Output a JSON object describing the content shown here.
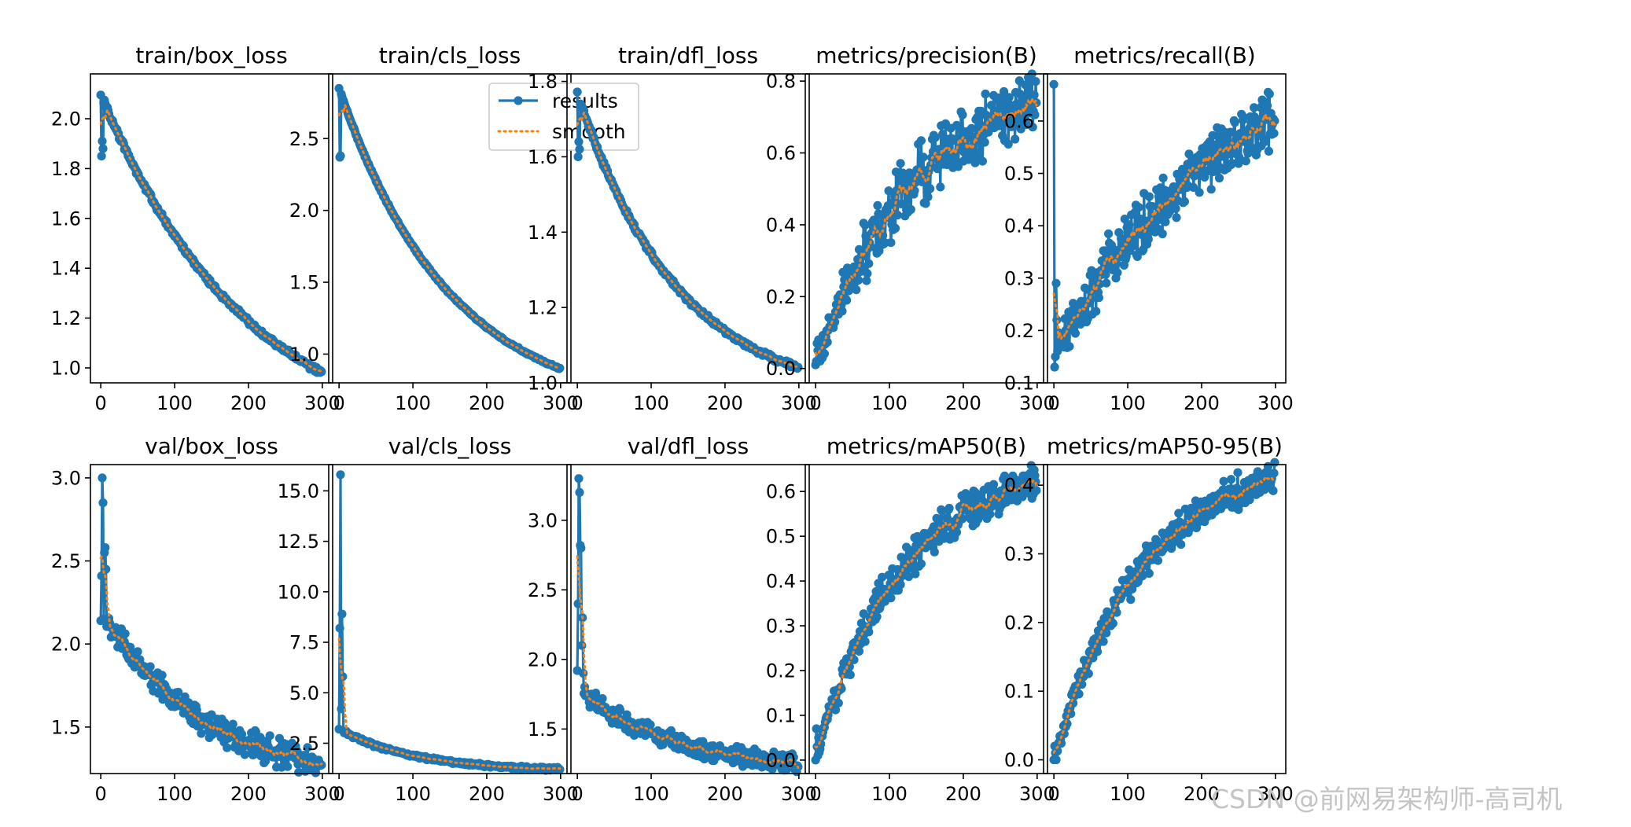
{
  "figure": {
    "legend": {
      "results_label": "results",
      "smooth_label": "smooth"
    },
    "watermark": "CSDN @前网易架构师-高司机",
    "colors": {
      "results": "#1f77b4",
      "smooth": "#ff7f0e",
      "axis": "#000000"
    }
  },
  "chart_data": [
    {
      "type": "line",
      "title": "train/box_loss",
      "xlim": [
        -14,
        314
      ],
      "ylim": [
        0.94,
        2.18
      ],
      "xticks": [
        0,
        100,
        200,
        300
      ],
      "xtick_labels": [
        "0",
        "100",
        "200",
        "300"
      ],
      "yticks": [
        1.0,
        1.2,
        1.4,
        1.6,
        1.8,
        2.0
      ],
      "ytick_labels": [
        "1.0",
        "1.2",
        "1.4",
        "1.6",
        "1.8",
        "2.0"
      ],
      "series": [
        {
          "name": "results",
          "gen": {
            "kind": "decay",
            "start": 2.1,
            "end": 0.98,
            "rate": 1.5,
            "noise": 0.008,
            "special": [
              [
                1,
                1.85
              ],
              [
                2,
                1.91
              ],
              [
                3,
                1.88
              ]
            ]
          }
        }
      ]
    },
    {
      "type": "line",
      "title": "train/cls_loss",
      "xlim": [
        -14,
        314
      ],
      "ylim": [
        0.8,
        2.95
      ],
      "xticks": [
        0,
        100,
        200,
        300
      ],
      "xtick_labels": [
        "0",
        "100",
        "200",
        "300"
      ],
      "yticks": [
        1.0,
        1.5,
        2.0,
        2.5
      ],
      "ytick_labels": [
        "1.0",
        "1.5",
        "2.0",
        "2.5"
      ],
      "legend": "top-right",
      "series": [
        {
          "name": "results",
          "gen": {
            "kind": "decay",
            "start": 2.85,
            "end": 0.9,
            "rate": 2.0,
            "noise": 0.005,
            "special": [
              [
                1,
                2.37
              ],
              [
                2,
                2.38
              ]
            ]
          }
        }
      ]
    },
    {
      "type": "line",
      "title": "train/dfl_loss",
      "xlim": [
        -14,
        314
      ],
      "ylim": [
        1.0,
        1.82
      ],
      "xticks": [
        0,
        100,
        200,
        300
      ],
      "xtick_labels": [
        "0",
        "100",
        "200",
        "300"
      ],
      "yticks": [
        1.0,
        1.2,
        1.4,
        1.6,
        1.8
      ],
      "ytick_labels": [
        "1.0",
        "1.2",
        "1.4",
        "1.6",
        "1.8"
      ],
      "series": [
        {
          "name": "results",
          "gen": {
            "kind": "decay",
            "start": 1.77,
            "end": 1.04,
            "rate": 2.2,
            "noise": 0.005,
            "special": [
              [
                1,
                1.6
              ],
              [
                2,
                1.64
              ],
              [
                3,
                1.62
              ]
            ]
          }
        }
      ]
    },
    {
      "type": "line",
      "title": "metrics/precision(B)",
      "xlim": [
        -14,
        314
      ],
      "ylim": [
        -0.04,
        0.82
      ],
      "xticks": [
        0,
        100,
        200,
        300
      ],
      "xtick_labels": [
        "0",
        "100",
        "200",
        "300"
      ],
      "yticks": [
        0.0,
        0.2,
        0.4,
        0.6,
        0.8
      ],
      "ytick_labels": [
        "0.0",
        "0.2",
        "0.4",
        "0.6",
        "0.8"
      ],
      "series": [
        {
          "name": "results",
          "gen": {
            "kind": "grow",
            "start": 0.0,
            "end": 0.73,
            "rate": 2.3,
            "noise": 0.045,
            "special": [
              [
                0,
                0.01
              ],
              [
                1,
                0.02
              ],
              [
                2,
                0.07
              ],
              [
                3,
                0.05
              ],
              [
                4,
                0.08
              ]
            ]
          }
        }
      ]
    },
    {
      "type": "line",
      "title": "metrics/recall(B)",
      "xlim": [
        -14,
        314
      ],
      "ylim": [
        0.1,
        0.69
      ],
      "xticks": [
        0,
        100,
        200,
        300
      ],
      "xtick_labels": [
        "0",
        "100",
        "200",
        "300"
      ],
      "yticks": [
        0.1,
        0.2,
        0.3,
        0.4,
        0.5,
        0.6
      ],
      "ytick_labels": [
        "0.1",
        "0.2",
        "0.3",
        "0.4",
        "0.5",
        "0.6"
      ],
      "series": [
        {
          "name": "results",
          "gen": {
            "kind": "grow",
            "start": 0.15,
            "end": 0.6,
            "rate": 1.3,
            "noise": 0.03,
            "special": [
              [
                0,
                0.67
              ],
              [
                1,
                0.13
              ],
              [
                2,
                0.15
              ],
              [
                3,
                0.29
              ],
              [
                4,
                0.22
              ]
            ]
          }
        }
      ]
    },
    {
      "type": "line",
      "title": "val/box_loss",
      "xlim": [
        -14,
        314
      ],
      "ylim": [
        1.22,
        3.08
      ],
      "xticks": [
        0,
        100,
        200,
        300
      ],
      "xtick_labels": [
        "0",
        "100",
        "200",
        "300"
      ],
      "yticks": [
        1.5,
        2.0,
        2.5,
        3.0
      ],
      "ytick_labels": [
        "1.5",
        "2.0",
        "2.5",
        "3.0"
      ],
      "series": [
        {
          "name": "results",
          "gen": {
            "kind": "decay",
            "start": 2.2,
            "end": 1.28,
            "rate": 2.2,
            "noise": 0.06,
            "special": [
              [
                0,
                2.14
              ],
              [
                1,
                2.41
              ],
              [
                2,
                3.0
              ],
              [
                3,
                2.85
              ],
              [
                4,
                2.15
              ],
              [
                5,
                2.55
              ],
              [
                6,
                2.58
              ],
              [
                7,
                2.45
              ]
            ]
          }
        }
      ]
    },
    {
      "type": "line",
      "title": "val/cls_loss",
      "xlim": [
        -14,
        314
      ],
      "ylim": [
        1.0,
        16.3
      ],
      "xticks": [
        0,
        100,
        200,
        300
      ],
      "xtick_labels": [
        "0",
        "100",
        "200",
        "300"
      ],
      "yticks": [
        2.5,
        5.0,
        7.5,
        10.0,
        12.5,
        15.0
      ],
      "ytick_labels": [
        "2.5",
        "5.0",
        "7.5",
        "10.0",
        "12.5",
        "15.0"
      ],
      "series": [
        {
          "name": "results",
          "gen": {
            "kind": "decay",
            "start": 3.2,
            "end": 1.22,
            "rate": 3.0,
            "noise": 0.06,
            "special": [
              [
                0,
                3.2
              ],
              [
                1,
                8.2
              ],
              [
                2,
                15.8
              ],
              [
                3,
                4.2
              ],
              [
                4,
                8.9
              ],
              [
                5,
                5.8
              ],
              [
                6,
                3.1
              ]
            ]
          }
        }
      ]
    },
    {
      "type": "line",
      "title": "val/dfl_loss",
      "xlim": [
        -14,
        314
      ],
      "ylim": [
        1.18,
        3.4
      ],
      "xticks": [
        0,
        100,
        200,
        300
      ],
      "xtick_labels": [
        "0",
        "100",
        "200",
        "300"
      ],
      "yticks": [
        1.5,
        2.0,
        2.5,
        3.0
      ],
      "ytick_labels": [
        "1.5",
        "2.0",
        "2.5",
        "3.0"
      ],
      "series": [
        {
          "name": "results",
          "gen": {
            "kind": "decay",
            "start": 1.8,
            "end": 1.25,
            "rate": 2.3,
            "noise": 0.05,
            "special": [
              [
                0,
                1.92
              ],
              [
                1,
                2.4
              ],
              [
                2,
                3.3
              ],
              [
                3,
                3.2
              ],
              [
                4,
                2.82
              ],
              [
                5,
                2.8
              ],
              [
                6,
                2.1
              ],
              [
                7,
                2.3
              ],
              [
                8,
                1.9
              ]
            ]
          }
        }
      ]
    },
    {
      "type": "line",
      "title": "metrics/mAP50(B)",
      "xlim": [
        -14,
        314
      ],
      "ylim": [
        -0.03,
        0.66
      ],
      "xticks": [
        0,
        100,
        200,
        300
      ],
      "xtick_labels": [
        "0",
        "100",
        "200",
        "300"
      ],
      "yticks": [
        0.0,
        0.1,
        0.2,
        0.3,
        0.4,
        0.5,
        0.6
      ],
      "ytick_labels": [
        "0.0",
        "0.1",
        "0.2",
        "0.3",
        "0.4",
        "0.5",
        "0.6"
      ],
      "series": [
        {
          "name": "results",
          "gen": {
            "kind": "grow",
            "start": 0.0,
            "end": 0.62,
            "rate": 2.6,
            "noise": 0.022,
            "special": [
              [
                0,
                0.0
              ],
              [
                1,
                0.07
              ],
              [
                2,
                0.03
              ],
              [
                3,
                0.01
              ],
              [
                4,
                0.05
              ]
            ]
          }
        }
      ]
    },
    {
      "type": "line",
      "title": "metrics/mAP50-95(B)",
      "xlim": [
        -14,
        314
      ],
      "ylim": [
        -0.02,
        0.43
      ],
      "xticks": [
        0,
        100,
        200,
        300
      ],
      "xtick_labels": [
        "0",
        "100",
        "200",
        "300"
      ],
      "yticks": [
        0.0,
        0.1,
        0.2,
        0.3,
        0.4
      ],
      "ytick_labels": [
        "0.0",
        "0.1",
        "0.2",
        "0.3",
        "0.4"
      ],
      "series": [
        {
          "name": "results",
          "gen": {
            "kind": "grow",
            "start": 0.0,
            "end": 0.41,
            "rate": 2.5,
            "noise": 0.013,
            "special": [
              [
                0,
                0.0
              ],
              [
                1,
                0.02
              ],
              [
                2,
                0.01
              ],
              [
                3,
                0.0
              ]
            ]
          }
        }
      ]
    }
  ]
}
